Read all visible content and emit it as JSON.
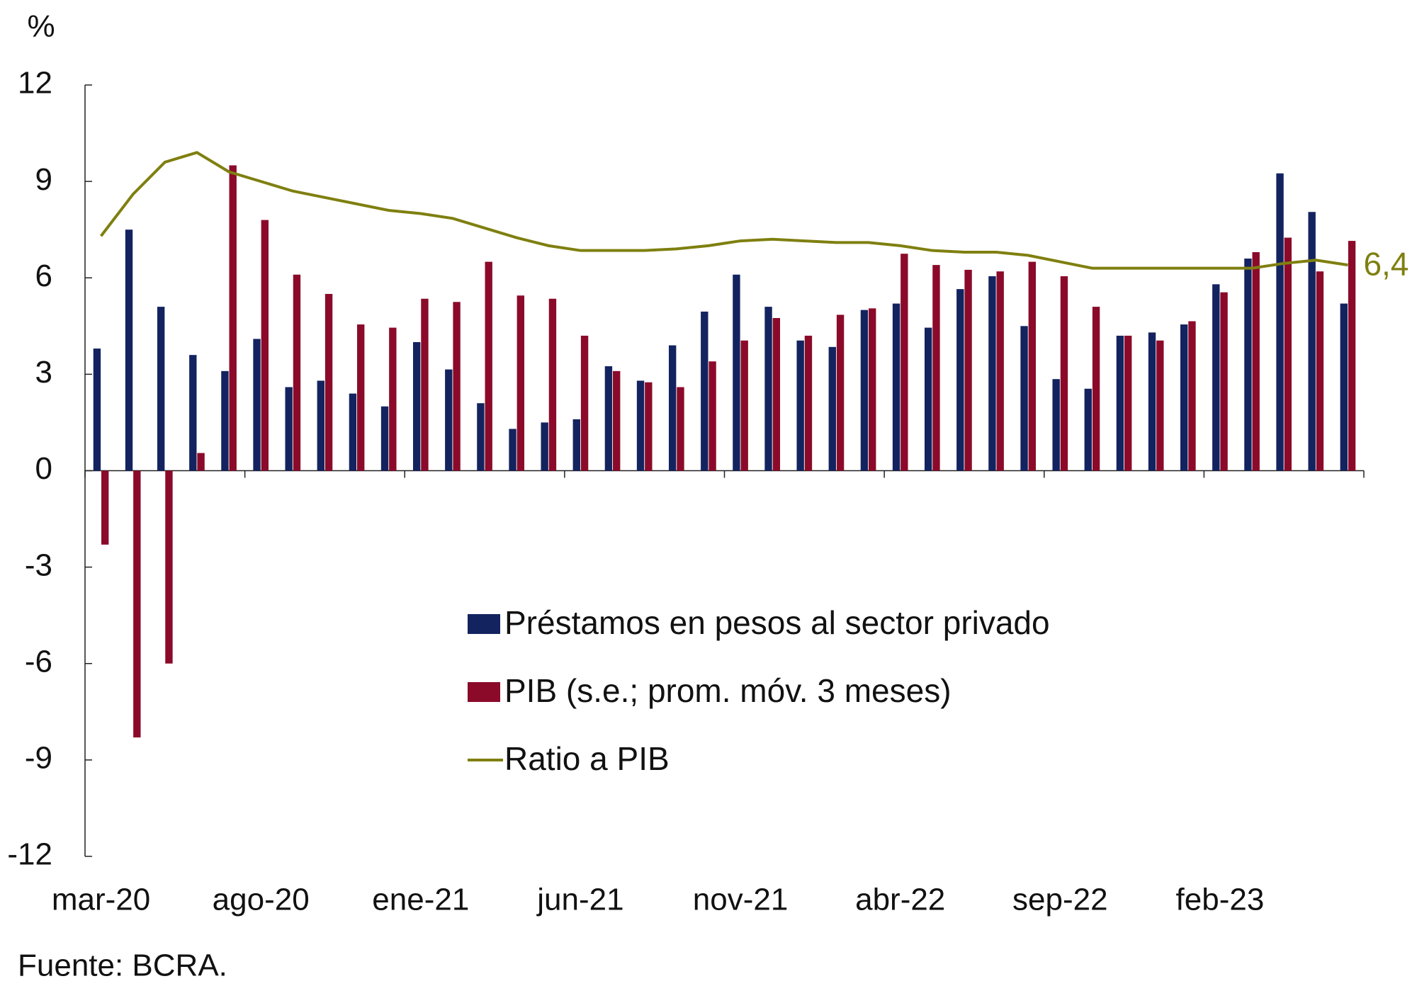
{
  "chart_data": {
    "type": "bar",
    "y_axis_label": "%",
    "note": "Fuente: BCRA.",
    "categories": [
      "mar-20",
      null,
      null,
      null,
      null,
      "ago-20",
      null,
      null,
      null,
      null,
      "ene-21",
      null,
      null,
      null,
      null,
      "jun-21",
      null,
      null,
      null,
      null,
      "nov-21",
      null,
      null,
      null,
      null,
      "abr-22",
      null,
      null,
      null,
      null,
      "sep-22",
      null,
      null,
      null,
      null,
      "feb-23",
      null,
      null,
      null,
      null
    ],
    "series": [
      {
        "name": "Préstamos en pesos al sector privado",
        "type": "bar",
        "color": "#13235f",
        "values": [
          3.8,
          7.5,
          5.1,
          3.6,
          3.1,
          4.1,
          2.6,
          2.8,
          2.4,
          2.0,
          4.0,
          3.15,
          2.1,
          1.3,
          1.5,
          1.6,
          3.25,
          2.8,
          3.9,
          4.95,
          6.1,
          5.1,
          4.05,
          3.85,
          5.0,
          5.2,
          4.45,
          5.65,
          6.05,
          4.5,
          2.85,
          2.55,
          4.2,
          4.3,
          4.55,
          5.8,
          6.6,
          9.25,
          8.05,
          5.2
        ]
      },
      {
        "name": "PIB (s.e.; prom. móv. 3 meses)",
        "type": "bar",
        "color": "#8b0a2a",
        "values": [
          -2.3,
          -8.3,
          -6.0,
          0.55,
          9.5,
          7.8,
          6.1,
          5.5,
          4.55,
          4.45,
          5.35,
          5.25,
          6.5,
          5.45,
          5.35,
          4.2,
          3.1,
          2.75,
          2.6,
          3.4,
          4.05,
          4.75,
          4.2,
          4.85,
          5.05,
          6.75,
          6.4,
          6.25,
          6.2,
          6.5,
          6.05,
          5.1,
          4.2,
          4.05,
          4.65,
          5.55,
          6.8,
          7.25,
          6.2,
          7.15
        ]
      },
      {
        "name": "Ratio a PIB",
        "type": "line",
        "color": "#7f7f10",
        "values": [
          7.3,
          8.6,
          9.6,
          9.9,
          9.3,
          9.0,
          8.7,
          8.5,
          8.3,
          8.1,
          8.0,
          7.85,
          7.55,
          7.25,
          7.0,
          6.85,
          6.85,
          6.85,
          6.9,
          7.0,
          7.15,
          7.2,
          7.15,
          7.1,
          7.1,
          7.0,
          6.85,
          6.8,
          6.8,
          6.7,
          6.5,
          6.3,
          6.3,
          6.3,
          6.3,
          6.3,
          6.3,
          6.45,
          6.55,
          6.4
        ],
        "value_labels": [
          null,
          null,
          null,
          null,
          null,
          null,
          null,
          null,
          null,
          null,
          null,
          null,
          null,
          null,
          null,
          null,
          null,
          null,
          null,
          null,
          null,
          null,
          null,
          null,
          null,
          null,
          null,
          null,
          null,
          null,
          null,
          null,
          null,
          null,
          null,
          null,
          null,
          null,
          null,
          "6,4"
        ]
      }
    ],
    "ylim": [
      -12,
      12
    ],
    "yticks": [
      -12,
      -9,
      -6,
      -3,
      0,
      3,
      6,
      9,
      12
    ]
  }
}
